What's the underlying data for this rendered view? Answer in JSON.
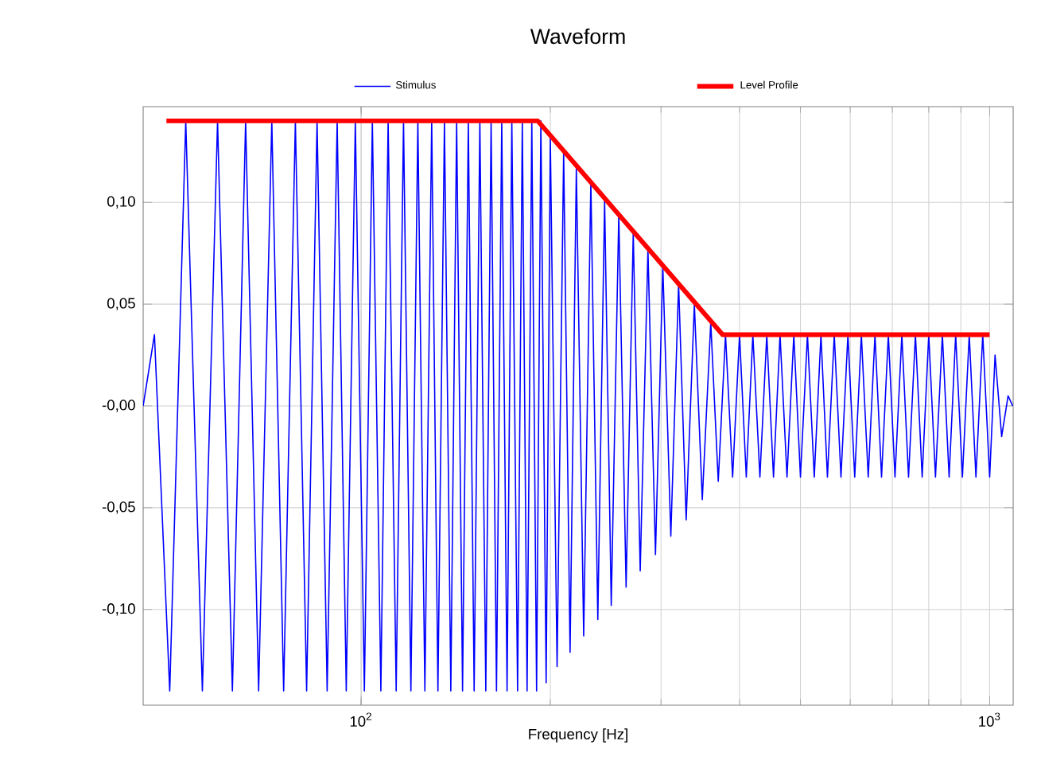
{
  "chart_data": {
    "type": "line",
    "title": "Waveform",
    "xlabel": "Frequency [Hz]",
    "log": "x",
    "grid": true,
    "legend": "top",
    "marker": "none",
    "line_style": "solid",
    "xlim": [
      45,
      1090
    ],
    "ylim": [
      -0.147,
      0.147
    ],
    "xticks": [
      {
        "value": 100,
        "label": "10$^{2}$"
      },
      {
        "value": 1000,
        "label": "10$^{3}$"
      }
    ],
    "yticks": [
      {
        "value": -0.1,
        "label": "-0,10"
      },
      {
        "value": -0.05,
        "label": "-0,05"
      },
      {
        "value": 0,
        "label": "-0,00"
      },
      {
        "value": 0.05,
        "label": "0,05"
      },
      {
        "value": 0.1,
        "label": "0,10"
      }
    ],
    "series": [
      {
        "name": "Stimulus",
        "color": "#0000ff",
        "x": [
          45,
          46.9,
          49.6,
          52.6,
          55.9,
          59.1,
          62.4,
          65.5,
          68.7,
          72.1,
          75.3,
          78.6,
          81.9,
          85.1,
          88.3,
          91.6,
          94.7,
          97.9,
          101.2,
          104.2,
          107.5,
          110.4,
          113.7,
          116.8,
          120.0,
          123.1,
          126.3,
          129.5,
          132.5,
          135.7,
          138.9,
          141.9,
          145.0,
          148.1,
          151.3,
          154.5,
          157.9,
          161.0,
          164.2,
          167.4,
          170.7,
          173.7,
          177.4,
          180.5,
          183.7,
          186.9,
          190.2,
          193.2,
          197.0,
          200,
          205,
          210,
          215,
          220,
          226,
          232,
          238,
          244,
          250,
          257,
          264,
          271,
          278,
          286,
          294,
          302,
          311,
          320,
          329,
          339,
          349,
          360,
          370,
          380,
          390,
          400,
          410,
          420,
          431,
          442,
          453,
          464,
          476,
          488,
          500,
          513,
          526,
          539,
          552,
          566,
          580,
          595,
          610,
          625,
          641,
          657,
          673,
          690,
          707,
          725,
          743,
          762,
          781,
          800,
          820,
          841,
          862,
          883,
          905,
          928,
          951,
          975,
          1000,
          1020,
          1045,
          1070,
          1088
        ],
        "values": [
          0,
          0.035,
          -0.14,
          0.14,
          -0.14,
          0.14,
          -0.14,
          0.14,
          -0.14,
          0.14,
          -0.14,
          0.14,
          -0.14,
          0.14,
          -0.14,
          0.14,
          -0.14,
          0.14,
          -0.14,
          0.14,
          -0.14,
          0.14,
          -0.14,
          0.14,
          -0.14,
          0.14,
          -0.14,
          0.14,
          -0.14,
          0.14,
          -0.14,
          0.14,
          -0.14,
          0.14,
          -0.14,
          0.14,
          -0.14,
          0.14,
          -0.14,
          0.14,
          -0.14,
          0.14,
          -0.14,
          0.14,
          -0.14,
          0.14,
          -0.14,
          0.14,
          -0.136,
          0.132,
          -0.128,
          0.125,
          -0.121,
          0.117,
          -0.113,
          0.11,
          -0.105,
          0.101,
          -0.098,
          0.094,
          -0.089,
          0.085,
          -0.081,
          0.077,
          -0.073,
          0.069,
          -0.064,
          0.06,
          -0.056,
          0.05,
          -0.046,
          0.041,
          -0.037,
          0.035,
          -0.035,
          0.035,
          -0.035,
          0.035,
          -0.035,
          0.035,
          -0.035,
          0.035,
          -0.035,
          0.035,
          -0.035,
          0.035,
          -0.035,
          0.035,
          -0.035,
          0.035,
          -0.035,
          0.035,
          -0.035,
          0.035,
          -0.035,
          0.035,
          -0.035,
          0.035,
          -0.035,
          0.035,
          -0.035,
          0.035,
          -0.035,
          0.035,
          -0.035,
          0.035,
          -0.035,
          0.035,
          -0.035,
          0.035,
          -0.035,
          0.035,
          -0.035,
          0.025,
          -0.015,
          0.005,
          0
        ]
      },
      {
        "name": "Level Profile",
        "color": "#ff0000",
        "x": [
          49,
          191,
          376,
          1000
        ],
        "values": [
          0.14,
          0.14,
          0.035,
          0.035
        ]
      }
    ]
  }
}
